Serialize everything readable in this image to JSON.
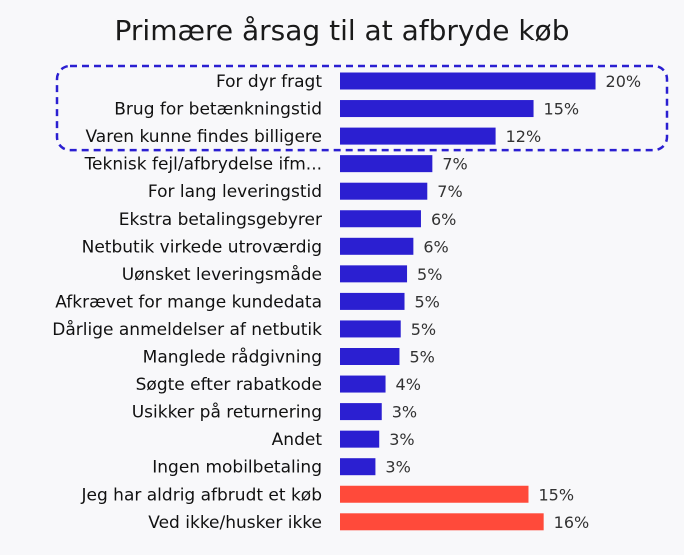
{
  "chart_data": {
    "type": "bar",
    "orientation": "horizontal",
    "title": "Primære årsag til at afbryde køb",
    "categories": [
      "For dyr fragt",
      "Brug for betænkningstid",
      "Varen kunne findes billigere",
      "Teknisk fejl/afbrydelse ifm...",
      "For lang leveringstid",
      "Ekstra betalingsgebyrer",
      "Netbutik virkede utroværdig",
      "Uønsket leveringsmåde",
      "Afkrævet for mange kundedata",
      "Dårlige anmeldelser af netbutik",
      "Manglede rådgivning",
      "Søgte efter rabatkode",
      "Usikker på returnering",
      "Andet",
      "Ingen mobilbetaling",
      "Jeg har aldrig afbrudt et køb",
      "Ved ikke/husker ikke"
    ],
    "values": [
      20,
      15,
      12,
      7,
      7,
      6,
      6,
      5,
      5,
      5,
      5,
      4,
      3,
      3,
      3,
      15,
      16
    ],
    "value_labels": [
      "20%",
      "15%",
      "12%",
      "7%",
      "7%",
      "6%",
      "6%",
      "5%",
      "5%",
      "5%",
      "5%",
      "4%",
      "3%",
      "3%",
      "3%",
      "15%",
      "16%"
    ],
    "value_precise": [
      20.2,
      15.3,
      12.3,
      7.3,
      6.9,
      6.4,
      5.8,
      5.3,
      5.1,
      4.8,
      4.7,
      3.6,
      3.3,
      3.1,
      2.8,
      14.9,
      16.1
    ],
    "unit": "%",
    "bar_colors": {
      "primary": "#2b1fd1",
      "secondary": "#ff4a3a"
    },
    "secondary_categories": [
      "Jeg har aldrig afbrudt et køb",
      "Ved ikke/husker ikke"
    ],
    "highlight": {
      "categories": [
        "For dyr fragt",
        "Brug for betænkningstid",
        "Varen kunne findes billigere"
      ],
      "style": "dashed-rounded-box",
      "color": "#2b1fd1"
    },
    "grid": false,
    "legend": "none"
  }
}
